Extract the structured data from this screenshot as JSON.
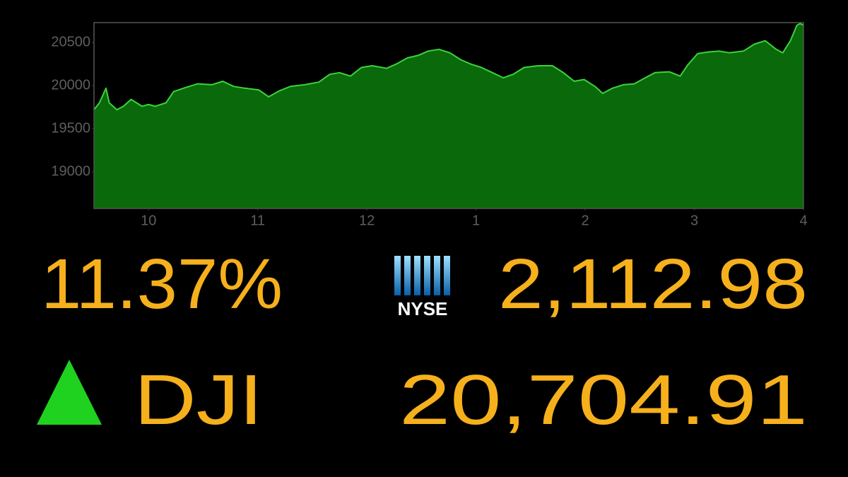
{
  "chart_data": {
    "type": "area",
    "x": [
      9.5,
      9.55,
      9.61,
      9.64,
      9.71,
      9.77,
      9.84,
      9.94,
      10.0,
      10.06,
      10.16,
      10.23,
      10.32,
      10.45,
      10.58,
      10.68,
      10.78,
      10.88,
      11.01,
      11.1,
      11.2,
      11.3,
      11.43,
      11.56,
      11.66,
      11.75,
      11.85,
      11.95,
      12.05,
      12.18,
      12.27,
      12.37,
      12.47,
      12.56,
      12.66,
      12.76,
      12.86,
      12.95,
      13.05,
      13.15,
      13.25,
      13.34,
      13.44,
      13.57,
      13.7,
      13.8,
      13.9,
      13.99,
      14.09,
      14.16,
      14.25,
      14.35,
      14.45,
      14.55,
      14.64,
      14.77,
      14.87,
      14.94,
      15.03,
      15.13,
      15.23,
      15.32,
      15.45,
      15.55,
      15.65,
      15.75,
      15.81,
      15.88,
      15.94,
      15.97,
      16.0
    ],
    "values": [
      19720,
      19800,
      19970,
      19800,
      19720,
      19760,
      19840,
      19760,
      19780,
      19760,
      19800,
      19930,
      19970,
      20020,
      20010,
      20050,
      19990,
      19970,
      19950,
      19870,
      19940,
      19990,
      20010,
      20040,
      20130,
      20150,
      20110,
      20210,
      20230,
      20200,
      20250,
      20320,
      20350,
      20400,
      20420,
      20380,
      20300,
      20250,
      20210,
      20150,
      20090,
      20130,
      20210,
      20230,
      20230,
      20150,
      20050,
      20070,
      19990,
      19910,
      19970,
      20010,
      20020,
      20090,
      20150,
      20160,
      20110,
      20240,
      20370,
      20390,
      20400,
      20380,
      20400,
      20480,
      20520,
      20420,
      20380,
      20520,
      20700,
      20720,
      20700
    ],
    "color": "#3ad43a",
    "fill_color": "#0a690a",
    "xlim": [
      9.5,
      16.0
    ],
    "xticks": [
      10,
      11,
      12,
      {
        "value": 13,
        "label": "1"
      },
      {
        "value": 14,
        "label": "2"
      },
      {
        "value": 15,
        "label": "3"
      },
      {
        "value": 16,
        "label": "4"
      }
    ],
    "ylim": [
      18575,
      20730
    ],
    "yticks": [
      19000,
      19500,
      20000,
      20500
    ],
    "grid": false
  },
  "ticker": {
    "change": "11.37%",
    "exchange": "NYSE",
    "exchange_value": "2,112.98",
    "symbol": "DJI",
    "index_value": "20,704.91"
  }
}
